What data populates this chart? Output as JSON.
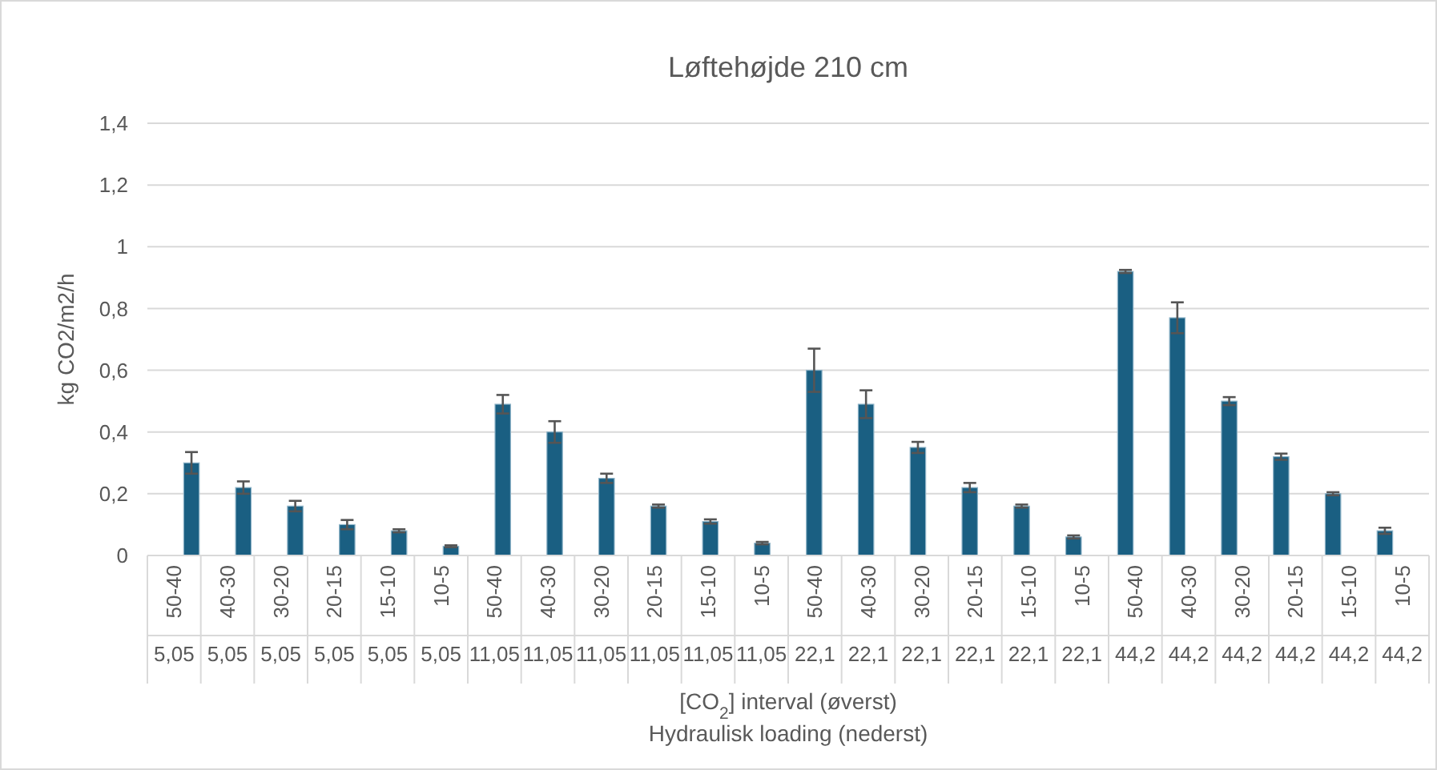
{
  "chart_data": {
    "type": "bar",
    "title": "Løftehøjde 210 cm",
    "ylabel": "kg CO2/m2/h",
    "xlabel": "[CO$_{2}$] interval (øverst)\nHydraulisk loading (nederst)",
    "categories": [
      "50-40\n5,05",
      "40-30\n5,05",
      "30-20\n5,05",
      "20-15\n5,05",
      "15-10\n5,05",
      "10-5\n5,05",
      "50-40\n11,05",
      "40-30\n11,05",
      "30-20\n11,05",
      "20-15\n11,05",
      "15-10\n11,05",
      "10-5\n11,05",
      "50-40\n22,1",
      "40-30\n22,1",
      "30-20\n22,1",
      "20-15\n22,1",
      "15-10\n22,1",
      "10-5\n22,1",
      "50-40\n44,2",
      "40-30\n44,2",
      "30-20\n44,2",
      "20-15\n44,2",
      "15-10\n44,2",
      "10-5\n44,2"
    ],
    "values": [
      0.3,
      0.22,
      0.16,
      0.1,
      0.08,
      0.03,
      0.49,
      0.4,
      0.25,
      0.16,
      0.11,
      0.04,
      0.6,
      0.49,
      0.35,
      0.22,
      0.16,
      0.06,
      0.92,
      0.77,
      0.5,
      0.32,
      0.2,
      0.08
    ],
    "errors": [
      0.035,
      0.02,
      0.017,
      0.015,
      0.005,
      0.003,
      0.03,
      0.035,
      0.015,
      0.005,
      0.007,
      0.004,
      0.07,
      0.045,
      0.018,
      0.015,
      0.005,
      0.005,
      0.005,
      0.05,
      0.013,
      0.01,
      0.005,
      0.01
    ],
    "color": "#1a5f82",
    "ylim": [
      0,
      1.4
    ],
    "yticks": [
      0,
      {
        "value": 0.2,
        "label": "0,2"
      },
      {
        "value": 0.4,
        "label": "0,4"
      },
      {
        "value": 0.6,
        "label": "0,6"
      },
      {
        "value": 0.8,
        "label": "0,8"
      },
      1,
      {
        "value": 1.2,
        "label": "1,2"
      },
      {
        "value": 1.4,
        "label": "1,4"
      }
    ],
    "grid": "y"
  }
}
